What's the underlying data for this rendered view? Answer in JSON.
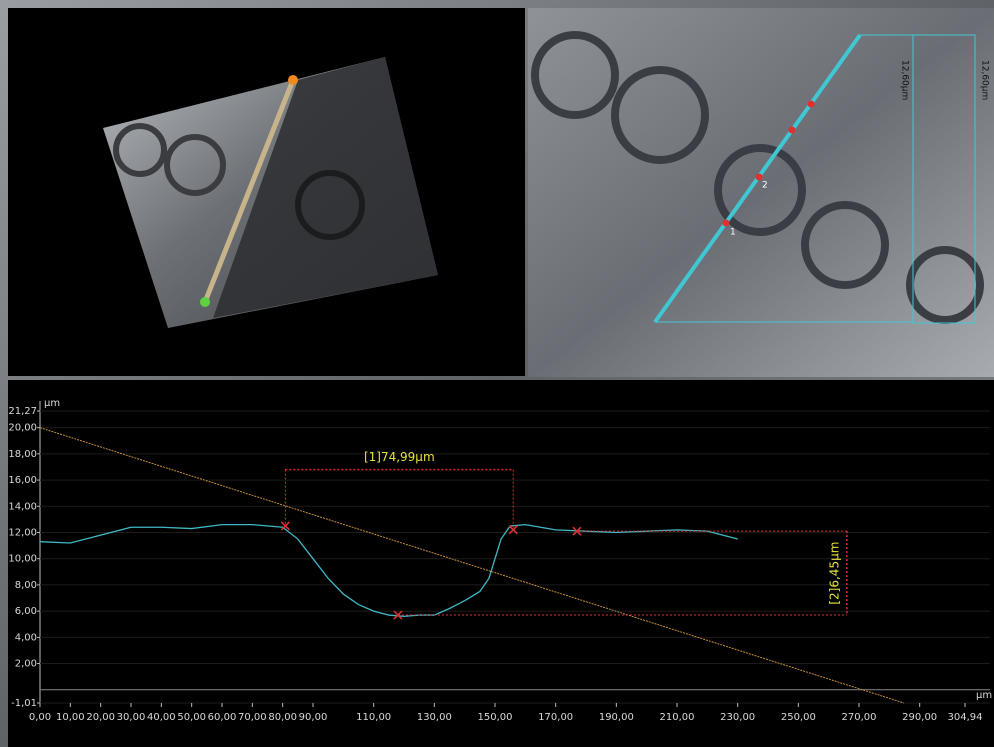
{
  "top_right_view": {
    "scale_labels": [
      "12,60µm",
      "12,60µm"
    ],
    "point_labels": [
      "1",
      "2"
    ]
  },
  "chart_data": {
    "type": "line",
    "y_label": "µm",
    "x_label": "µm",
    "xlim": [
      0,
      304.94
    ],
    "ylim": [
      -1.01,
      21.27
    ],
    "xticks": [
      {
        "value": 0,
        "label": "0,00"
      },
      {
        "value": 10,
        "label": "10,00"
      },
      {
        "value": 20,
        "label": "20,00"
      },
      {
        "value": 30,
        "label": "30,00"
      },
      {
        "value": 40,
        "label": "40,00"
      },
      {
        "value": 50,
        "label": "50,00"
      },
      {
        "value": 60,
        "label": "60,00"
      },
      {
        "value": 70,
        "label": "70,00"
      },
      {
        "value": 80,
        "label": "80,00"
      },
      {
        "value": 90,
        "label": "90,00"
      },
      {
        "value": 110,
        "label": "110,00"
      },
      {
        "value": 130,
        "label": "130,00"
      },
      {
        "value": 150,
        "label": "150,00"
      },
      {
        "value": 170,
        "label": "170,00"
      },
      {
        "value": 190,
        "label": "190,00"
      },
      {
        "value": 210,
        "label": "210,00"
      },
      {
        "value": 230,
        "label": "230,00"
      },
      {
        "value": 250,
        "label": "250,00"
      },
      {
        "value": 270,
        "label": "270,00"
      },
      {
        "value": 290,
        "label": "290,00"
      },
      {
        "value": 304.94,
        "label": "304,94"
      }
    ],
    "yticks": [
      {
        "value": -1.01,
        "label": "-1,01"
      },
      {
        "value": 2,
        "label": "2,00"
      },
      {
        "value": 4,
        "label": "4,00"
      },
      {
        "value": 6,
        "label": "6,00"
      },
      {
        "value": 8,
        "label": "8,00"
      },
      {
        "value": 10,
        "label": "10,00"
      },
      {
        "value": 12,
        "label": "12,00"
      },
      {
        "value": 14,
        "label": "14,00"
      },
      {
        "value": 16,
        "label": "16,00"
      },
      {
        "value": 18,
        "label": "18,00"
      },
      {
        "value": 20,
        "label": "20,00"
      },
      {
        "value": 21.27,
        "label": "21,27"
      }
    ],
    "grid": true,
    "series": [
      {
        "color": "#3fb8c4",
        "x": [
          0,
          10,
          20,
          30,
          40,
          50,
          60,
          70,
          80,
          85,
          90,
          95,
          100,
          105,
          110,
          115,
          120,
          125,
          130,
          135,
          140,
          145,
          148,
          150,
          152,
          155,
          160,
          170,
          180,
          190,
          200,
          210,
          220,
          230
        ],
        "values": [
          11.3,
          11.2,
          11.8,
          12.4,
          12.4,
          12.3,
          12.6,
          12.6,
          12.4,
          11.5,
          10.0,
          8.5,
          7.3,
          6.5,
          6.0,
          5.7,
          5.6,
          5.7,
          5.7,
          6.2,
          6.8,
          7.5,
          8.5,
          10.0,
          11.5,
          12.5,
          12.6,
          12.2,
          12.1,
          12.0,
          12.1,
          12.2,
          12.1,
          11.5
        ]
      },
      {
        "color": "#c8913a",
        "x": [
          0,
          284.8
        ],
        "values": [
          20.0,
          -1.01
        ]
      }
    ],
    "markers": {
      "color": "#e03030",
      "x": [
        80.9,
        118,
        156,
        177
      ],
      "values": [
        12.5,
        5.7,
        12.2,
        12.1
      ]
    },
    "annotations": [
      "[1]74,99µm",
      "[2]6,45µm"
    ]
  }
}
